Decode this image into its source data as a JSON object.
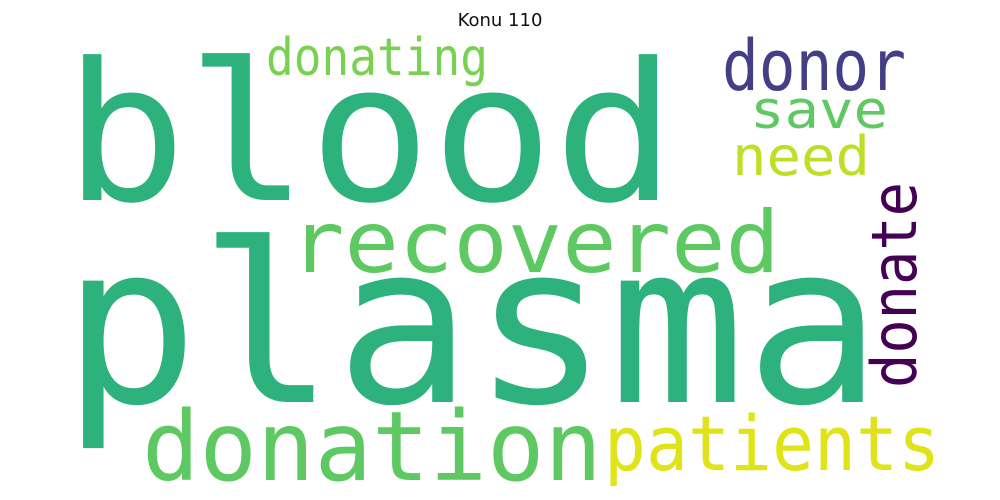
{
  "title": "Konu 110",
  "words": [
    {
      "text": "blood",
      "color": "#2db27d"
    },
    {
      "text": "plasma",
      "color": "#2db27d"
    },
    {
      "text": "recovered",
      "color": "#5ec962"
    },
    {
      "text": "donation",
      "color": "#5ec962"
    },
    {
      "text": "patients",
      "color": "#dfe318"
    },
    {
      "text": "donating",
      "color": "#7ad151"
    },
    {
      "text": "donor",
      "color": "#433e85"
    },
    {
      "text": "save",
      "color": "#5ec962"
    },
    {
      "text": "need",
      "color": "#bddf26"
    },
    {
      "text": "donate",
      "color": "#440154"
    }
  ]
}
